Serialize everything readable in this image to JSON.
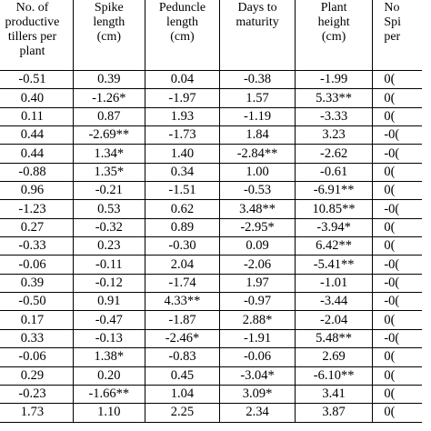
{
  "headers": [
    "No. of\nproductive\ntillers per\nplant",
    "Spike\nlength\n(cm)",
    "Peduncle\nlength\n(cm)",
    "Days to\nmaturity",
    "Plant\nheight\n(cm)",
    "No\nSpi\nper"
  ],
  "rows": [
    [
      "-0.51",
      "0.39",
      "0.04",
      "-0.38",
      "-1.99",
      "0("
    ],
    [
      "0.40",
      "-1.26*",
      "-1.97",
      "1.57",
      "5.33**",
      "0("
    ],
    [
      "0.11",
      "0.87",
      "1.93",
      "-1.19",
      "-3.33",
      "0("
    ],
    [
      "0.44",
      "-2.69**",
      "-1.73",
      "1.84",
      "3.23",
      "-0("
    ],
    [
      "0.44",
      "1.34*",
      "1.40",
      "-2.84**",
      "-2.62",
      "-0("
    ],
    [
      "-0.88",
      "1.35*",
      "0.34",
      "1.00",
      "-0.61",
      "0("
    ],
    [
      "0.96",
      "-0.21",
      "-1.51",
      "-0.53",
      "-6.91**",
      "0("
    ],
    [
      "-1.23",
      "0.53",
      "0.62",
      "3.48**",
      "10.85**",
      "-0("
    ],
    [
      "0.27",
      "-0.32",
      "0.89",
      "-2.95*",
      "-3.94*",
      "0("
    ],
    [
      "-0.33",
      "0.23",
      "-0.30",
      "0.09",
      "6.42**",
      "0("
    ],
    [
      "-0.06",
      "-0.11",
      "2.04",
      "-2.06",
      "-5.41**",
      "-0("
    ],
    [
      "0.39",
      "-0.12",
      "-1.74",
      "1.97",
      "-1.01",
      "-0("
    ],
    [
      "-0.50",
      "0.91",
      "4.33**",
      "-0.97",
      "-3.44",
      "-0("
    ],
    [
      "0.17",
      "-0.47",
      "-1.87",
      "2.88*",
      "-2.04",
      "0("
    ],
    [
      "0.33",
      "-0.13",
      "-2.46*",
      "-1.91",
      "5.48**",
      "-0("
    ],
    [
      "-0.06",
      "1.38*",
      "-0.83",
      "-0.06",
      "2.69",
      "0("
    ],
    [
      "0.29",
      "0.20",
      "0.45",
      "-3.04*",
      "-6.10**",
      "0("
    ],
    [
      "-0.23",
      "-1.66**",
      "1.04",
      "3.09*",
      "3.41",
      "0("
    ],
    [
      "1.73",
      "1.10",
      "2.25",
      "2.34",
      "3.87",
      "0("
    ]
  ]
}
